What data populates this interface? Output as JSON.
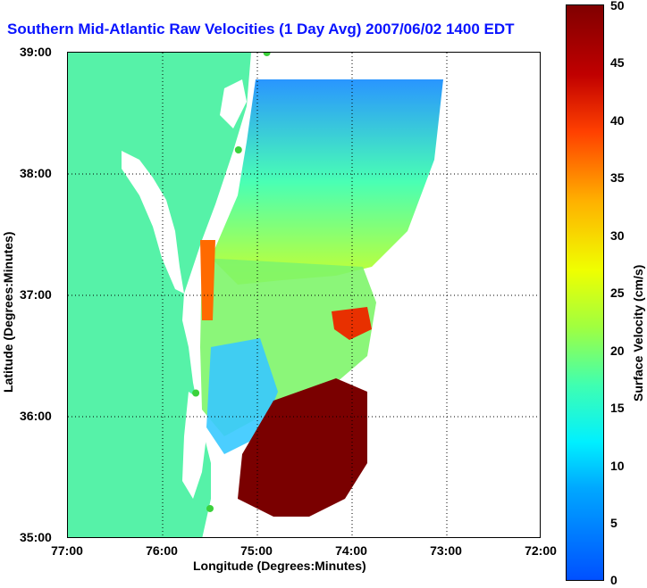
{
  "title": "Southern Mid-Atlantic Raw Velocities (1 Day Avg) 2007/06/02 1400 EDT",
  "axes": {
    "xlabel": "Longitude (Degrees:Minutes)",
    "ylabel": "Latitude (Degrees:Minutes)",
    "xticks": [
      "77:00",
      "76:00",
      "75:00",
      "74:00",
      "73:00",
      "72:00"
    ],
    "yticks": [
      "39:00",
      "38:00",
      "37:00",
      "36:00",
      "35:00"
    ]
  },
  "colorbar": {
    "label": "Surface Velocity (cm/s)",
    "ticks": [
      "50",
      "45",
      "40",
      "35",
      "30",
      "25",
      "20",
      "15",
      "10",
      "5",
      "0"
    ]
  },
  "colors": {
    "land": "#56f2a8",
    "water": "#ffffff",
    "title": "#0a14ff",
    "station": "#3bd13b"
  },
  "map": {
    "lon_range": [
      -77,
      -72
    ],
    "lat_range": [
      35,
      39
    ],
    "stations": [
      {
        "lon": -74.9,
        "lat": 39.0
      },
      {
        "lon": -75.2,
        "lat": 38.2
      },
      {
        "lon": -75.65,
        "lat": 36.2
      },
      {
        "lon": -75.5,
        "lat": 35.25
      }
    ]
  }
}
